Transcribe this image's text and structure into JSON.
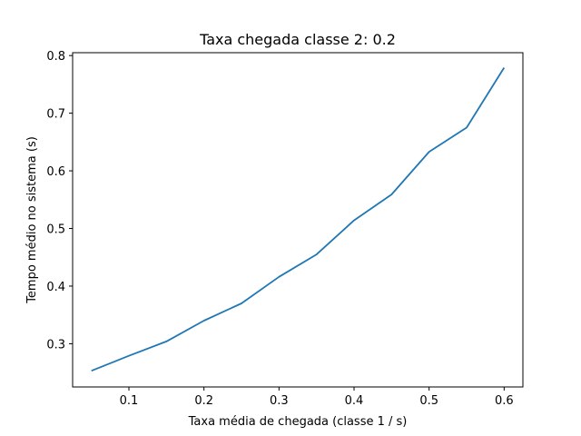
{
  "chart_data": {
    "type": "line",
    "title": "Taxa chegada classe 2: 0.2",
    "xlabel": "Taxa média de chegada (classe 1 / s)",
    "ylabel": "Tempo médio no sistema (s)",
    "xlim": [
      0.025,
      0.625
    ],
    "ylim": [
      0.225,
      0.805
    ],
    "xticks": [
      0.1,
      0.2,
      0.3,
      0.4,
      0.5,
      0.6
    ],
    "xtick_labels": [
      "0.1",
      "0.2",
      "0.3",
      "0.4",
      "0.5",
      "0.6"
    ],
    "yticks": [
      0.3,
      0.4,
      0.5,
      0.6,
      0.7,
      0.8
    ],
    "ytick_labels": [
      "0.3",
      "0.4",
      "0.5",
      "0.6",
      "0.7",
      "0.8"
    ],
    "grid": false,
    "series": [
      {
        "color": "#1f77b4",
        "x": [
          0.05,
          0.1,
          0.15,
          0.2,
          0.25,
          0.3,
          0.35,
          0.4,
          0.45,
          0.5,
          0.55,
          0.6
        ],
        "y": [
          0.253,
          0.279,
          0.304,
          0.34,
          0.37,
          0.416,
          0.455,
          0.514,
          0.559,
          0.633,
          0.675,
          0.779
        ]
      }
    ]
  }
}
